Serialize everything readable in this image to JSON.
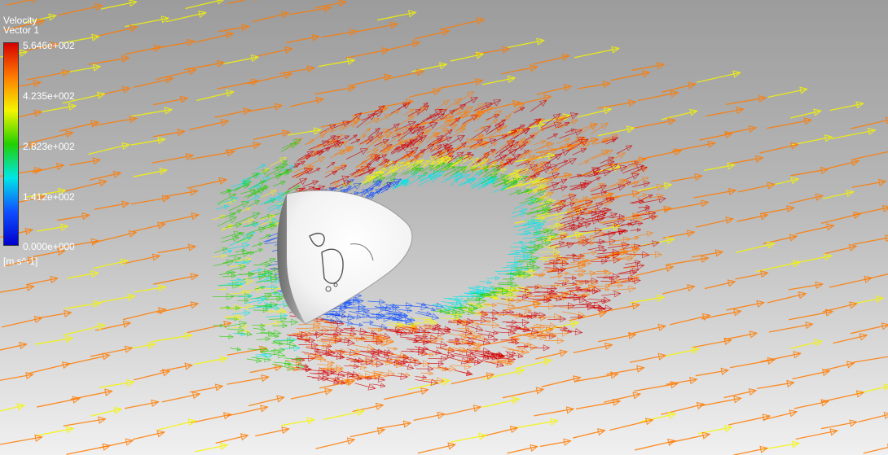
{
  "legend": {
    "title": "Velocity",
    "subtitle": "Vector 1",
    "ticks": [
      "5.646e+002",
      "4.235e+002",
      "2.823e+002",
      "1.412e+002",
      "0.000e+000"
    ],
    "unit": "[m s^-1]",
    "colors": [
      "#d40000",
      "#ff7b00",
      "#f5f500",
      "#22d000",
      "#00e6e6",
      "#1050ff",
      "#0000cc"
    ]
  },
  "flow": {
    "max_velocity": 564.6,
    "min_velocity": 0.0
  }
}
